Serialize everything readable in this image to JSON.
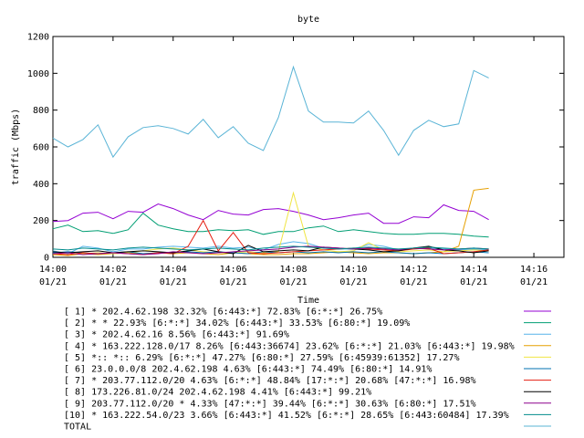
{
  "chart_data": {
    "type": "line",
    "title": "byte",
    "xlabel": "Time",
    "ylabel": "traffic (Mbps)",
    "ylim": [
      0,
      1200
    ],
    "yticks": [
      0,
      200,
      400,
      600,
      800,
      1000,
      1200
    ],
    "xlim": [
      0,
      17
    ],
    "xtick_values": [
      0,
      2,
      4,
      6,
      8,
      10,
      12,
      14,
      16
    ],
    "xtick_times": [
      "14:00",
      "14:02",
      "14:04",
      "14:06",
      "14:08",
      "14:10",
      "14:12",
      "14:14",
      "14:16"
    ],
    "xtick_dates": [
      "01/21",
      "01/21",
      "01/21",
      "01/21",
      "01/21",
      "01/21",
      "01/21",
      "01/21",
      "01/21"
    ],
    "grid": false,
    "legend_position": "bottom",
    "x": [
      0,
      0.5,
      1,
      1.5,
      2,
      2.5,
      3,
      3.5,
      4,
      4.5,
      5,
      5.5,
      6,
      6.5,
      7,
      7.5,
      8,
      8.5,
      9,
      9.5,
      10,
      10.5,
      11,
      11.5,
      12,
      12.5,
      13,
      13.5,
      14,
      14.5
    ],
    "series": [
      {
        "name": "[ 1] * 202.4.62.198 32.32%  [6:443:*] 72.83% [6:*:*] 26.75%",
        "color": "#9400d3",
        "values": [
          195,
          200,
          240,
          245,
          210,
          250,
          245,
          290,
          265,
          230,
          205,
          255,
          235,
          230,
          260,
          265,
          250,
          230,
          205,
          215,
          230,
          240,
          185,
          185,
          220,
          215,
          285,
          255,
          250,
          205
        ]
      },
      {
        "name": "[ 2] * * 22.93%  [6:*:*] 34.02% [6:443:*] 33.53% [6:80:*] 19.09%",
        "color": "#009e73",
        "values": [
          155,
          175,
          140,
          145,
          130,
          150,
          240,
          175,
          155,
          140,
          140,
          150,
          145,
          150,
          125,
          140,
          140,
          160,
          170,
          140,
          150,
          140,
          130,
          125,
          125,
          130,
          130,
          125,
          115,
          110
        ]
      },
      {
        "name": "[ 3] * 202.4.62.16 8.56%  [6:443:*] 91.69%",
        "color": "#56b4e9",
        "values": [
          35,
          20,
          60,
          50,
          30,
          45,
          45,
          55,
          60,
          55,
          50,
          60,
          50,
          55,
          40,
          70,
          85,
          75,
          50,
          45,
          45,
          70,
          60,
          40,
          45,
          50,
          45,
          40,
          45,
          40
        ]
      },
      {
        "name": "[ 4] * 163.222.128.0/17 8.26%  [6:443:36674] 23.62% [6:*:*] 21.03% [6:443:*] 19.98%",
        "color": "#e69f00",
        "values": [
          15,
          10,
          20,
          15,
          20,
          25,
          20,
          25,
          20,
          25,
          20,
          15,
          25,
          20,
          15,
          15,
          20,
          20,
          25,
          30,
          25,
          20,
          25,
          25,
          20,
          25,
          30,
          60,
          365,
          375
        ]
      },
      {
        "name": "[ 5] *:: *:: 6.29%  [6:*:*] 47.27% [6:80:*] 27.59% [6:45939:61352] 17.27%",
        "color": "#f0e442",
        "values": [
          20,
          25,
          20,
          25,
          20,
          25,
          35,
          45,
          50,
          40,
          30,
          25,
          25,
          30,
          25,
          30,
          350,
          60,
          40,
          30,
          35,
          80,
          40,
          30,
          35,
          40,
          30,
          35,
          40,
          35
        ]
      },
      {
        "name": "[ 6] 23.0.0.0/8 202.4.62.198 4.63%  [6:443:*] 74.49% [6:80:*] 14.91%",
        "color": "#0072b2",
        "values": [
          25,
          30,
          25,
          20,
          25,
          30,
          20,
          25,
          25,
          30,
          25,
          30,
          25,
          20,
          30,
          25,
          30,
          25,
          30,
          25,
          30,
          25,
          30,
          25,
          20,
          25,
          20,
          25,
          30,
          25
        ]
      },
      {
        "name": "[ 7] * 203.77.112.0/20 4.63%  [6:*:*] 48.84% [17:*:*] 20.68% [47:*:*] 16.98%",
        "color": "#e51e10",
        "values": [
          20,
          15,
          25,
          20,
          25,
          20,
          15,
          25,
          20,
          60,
          200,
          35,
          135,
          25,
          20,
          25,
          30,
          35,
          40,
          45,
          50,
          45,
          40,
          35,
          45,
          50,
          20,
          25,
          30,
          40
        ]
      },
      {
        "name": "[ 8] 173.226.81.0/24 202.4.62.198 4.41%  [6:443:*] 99.21%",
        "color": "#000000",
        "values": [
          30,
          25,
          30,
          35,
          25,
          30,
          35,
          30,
          25,
          35,
          45,
          30,
          20,
          65,
          30,
          35,
          40,
          35,
          55,
          50,
          45,
          40,
          30,
          35,
          50,
          60,
          40,
          35,
          25,
          35
        ]
      },
      {
        "name": "[ 9] 203.77.112.0/20 * 4.33%  [47:*:*] 39.44% [6:*:*] 30.63% [6:80:*] 17.51%",
        "color": "#8b008b",
        "values": [
          20,
          25,
          15,
          20,
          25,
          20,
          15,
          20,
          30,
          25,
          20,
          25,
          30,
          35,
          40,
          45,
          55,
          60,
          55,
          50,
          45,
          50,
          45,
          40,
          50,
          45,
          40,
          45,
          50,
          45
        ]
      },
      {
        "name": "[10] * 163.222.54.0/23 3.66%  [6:443:*] 41.52% [6:*:*] 28.65% [6:443:60484] 17.39%",
        "color": "#008b8b",
        "values": [
          45,
          40,
          50,
          45,
          40,
          50,
          55,
          50,
          45,
          40,
          45,
          50,
          45,
          40,
          50,
          55,
          60,
          55,
          50,
          45,
          50,
          55,
          50,
          45,
          50,
          55,
          50,
          45,
          50,
          45
        ]
      },
      {
        "name": "TOTAL",
        "color": "#5ab4d6",
        "values": [
          648,
          600,
          640,
          720,
          545,
          655,
          705,
          715,
          700,
          670,
          750,
          650,
          710,
          620,
          580,
          760,
          1035,
          795,
          735,
          735,
          730,
          795,
          690,
          555,
          690,
          745,
          710,
          725,
          1015,
          975
        ]
      }
    ]
  }
}
